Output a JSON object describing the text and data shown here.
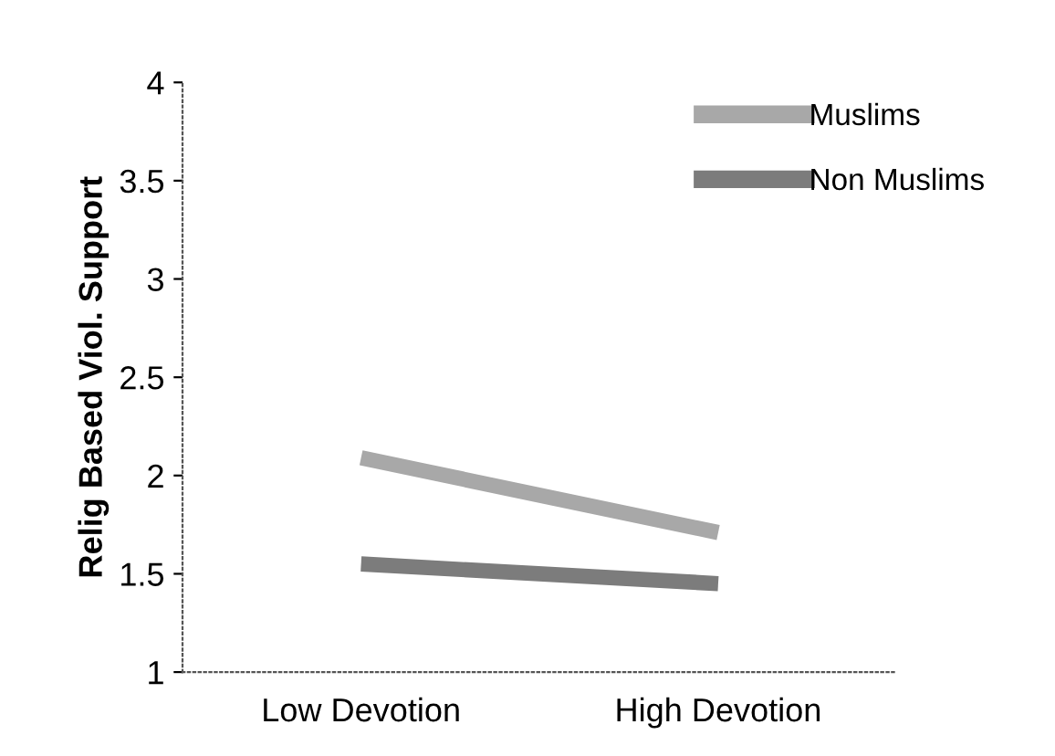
{
  "chart_data": {
    "type": "line",
    "ylabel": "Relig Based Viol. Support",
    "categories": [
      "Low Devotion",
      "High Devotion"
    ],
    "series": [
      {
        "name": "Muslims",
        "color": "#a8a8a8",
        "values": [
          2.09,
          1.71
        ]
      },
      {
        "name": "Non Muslims",
        "color": "#7c7c7c",
        "values": [
          1.55,
          1.45
        ]
      }
    ],
    "ylim": [
      1,
      4
    ],
    "yticks": [
      1,
      1.5,
      2,
      2.5,
      3,
      3.5,
      4
    ],
    "grid": false,
    "legend": "top right",
    "marker": "none",
    "line_style": "solid"
  }
}
